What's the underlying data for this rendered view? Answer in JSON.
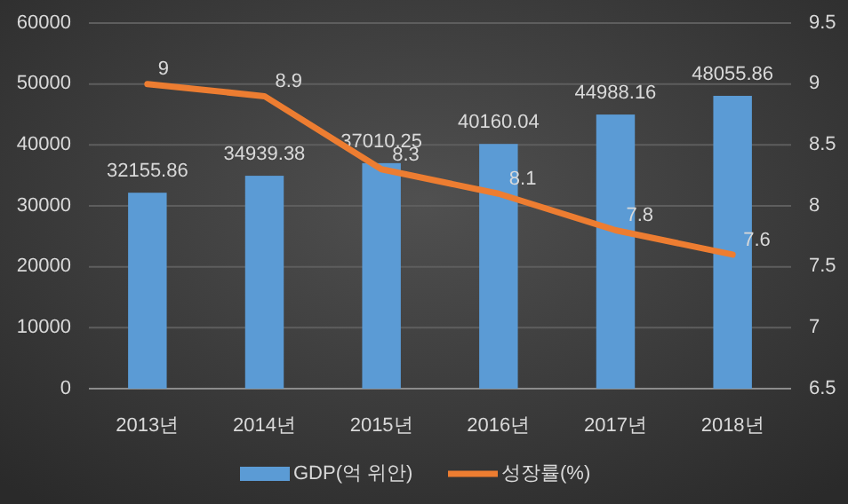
{
  "chart_data": {
    "type": "bar",
    "categories": [
      "2013년",
      "2014년",
      "2015년",
      "2016년",
      "2017년",
      "2018년"
    ],
    "series": [
      {
        "name": "GDP(억 위안)",
        "color": "#5b9bd5",
        "values": [
          32155.86,
          34939.38,
          37010.25,
          40160.04,
          44988.16,
          48055.86
        ]
      },
      {
        "name": "성장률(%)",
        "type": "line",
        "axis": "y2",
        "color": "#ed7d31",
        "values": [
          9,
          8.9,
          8.3,
          8.1,
          7.8,
          7.6
        ]
      }
    ],
    "ylim": [
      0,
      60000
    ],
    "yticks": [
      0,
      10000,
      20000,
      30000,
      40000,
      50000,
      60000
    ],
    "y2lim": [
      6.5,
      9.5
    ],
    "y2ticks": [
      6.5,
      7,
      7.5,
      8,
      8.5,
      9,
      9.5
    ],
    "grid": "y",
    "legend": "bottom",
    "data_labels": true
  }
}
